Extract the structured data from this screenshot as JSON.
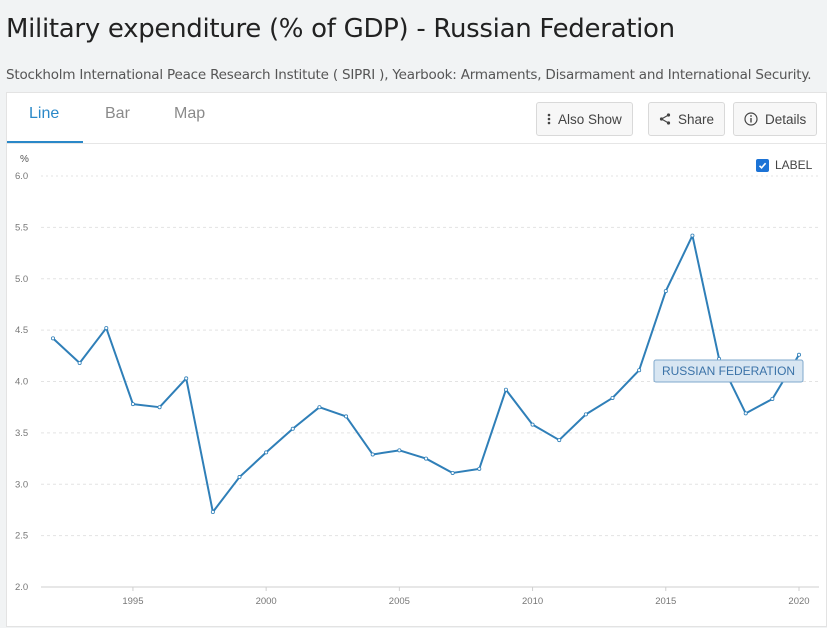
{
  "header": {
    "title": "Military expenditure (% of GDP) - Russian Federation",
    "source": "Stockholm International Peace Research Institute ( SIPRI ), Yearbook: Armaments, Disarmament and International Security."
  },
  "tabs": [
    {
      "label": "Line",
      "active": true
    },
    {
      "label": "Bar",
      "active": false
    },
    {
      "label": "Map",
      "active": false
    }
  ],
  "toolbar": {
    "also_show_label": "Also Show",
    "share_label": "Share",
    "details_label": "Details"
  },
  "label_toggle": {
    "label": "LABEL",
    "checked": true
  },
  "colors": {
    "accent": "#2a88c8",
    "line": "#2f7fb8",
    "checkbox": "#1c73d6"
  },
  "chart_data": {
    "type": "line",
    "ylabel": "%",
    "ylim": [
      2.0,
      6.0
    ],
    "yticks": [
      "2.0",
      "2.5",
      "3.0",
      "3.5",
      "4.0",
      "4.5",
      "5.0",
      "5.5",
      "6.0"
    ],
    "xticks": [
      "1995",
      "2000",
      "2005",
      "2010",
      "2015",
      "2020"
    ],
    "xlim": [
      1992,
      2020
    ],
    "grid": true,
    "series": [
      {
        "name": "RUSSIAN FEDERATION",
        "x": [
          1992,
          1993,
          1994,
          1995,
          1996,
          1997,
          1998,
          1999,
          2000,
          2001,
          2002,
          2003,
          2004,
          2005,
          2006,
          2007,
          2008,
          2009,
          2010,
          2011,
          2012,
          2013,
          2014,
          2015,
          2016,
          2017,
          2018,
          2019,
          2020
        ],
        "values": [
          4.42,
          4.18,
          4.52,
          3.78,
          3.75,
          4.03,
          2.73,
          3.07,
          3.31,
          3.54,
          3.75,
          3.66,
          3.29,
          3.33,
          3.25,
          3.11,
          3.15,
          3.92,
          3.58,
          3.43,
          3.68,
          3.84,
          4.11,
          4.88,
          5.42,
          4.22,
          3.69,
          3.83,
          4.26
        ]
      }
    ]
  }
}
